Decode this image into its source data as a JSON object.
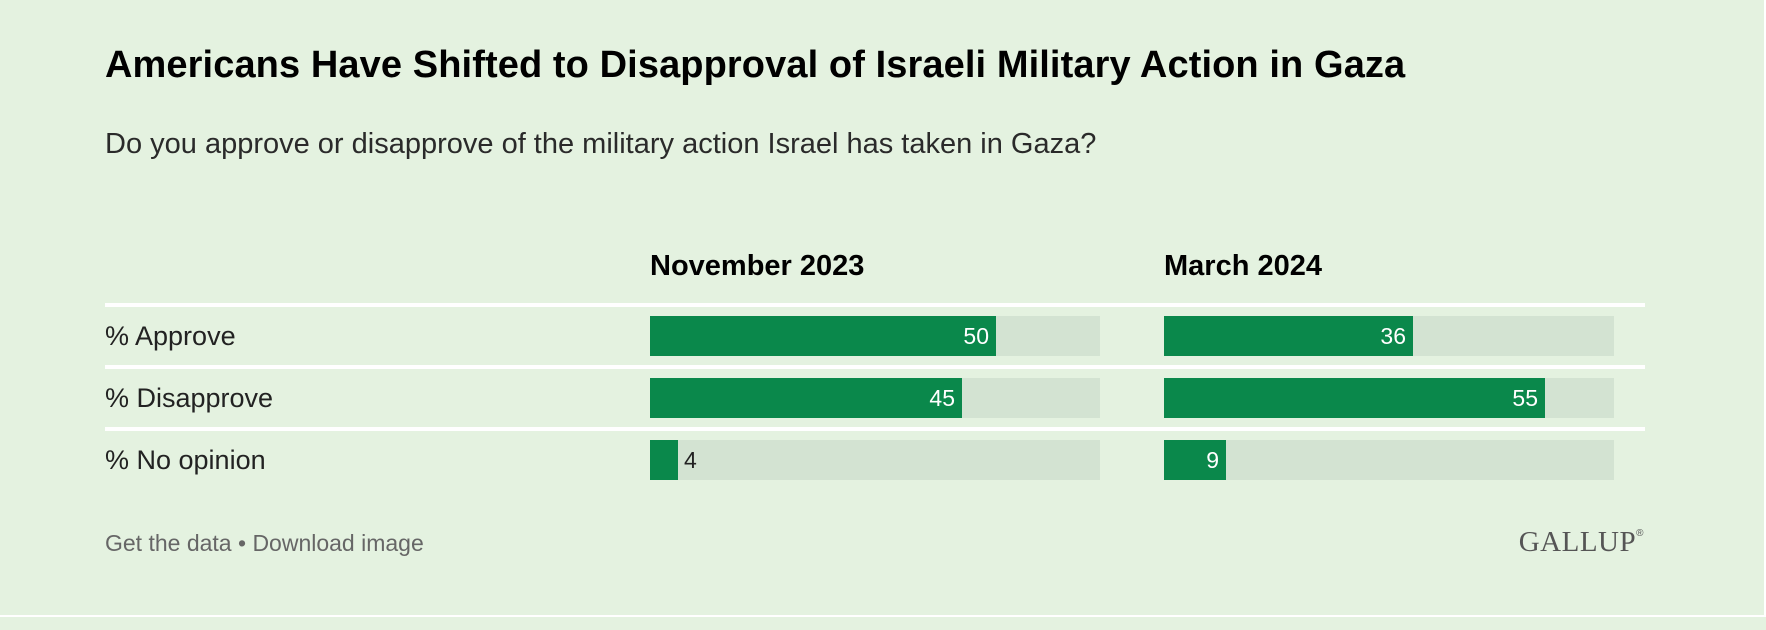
{
  "title": "Americans Have Shifted to Disapproval of Israeli Military Action in Gaza",
  "subtitle": "Do you approve or disapprove of the military action Israel has taken in Gaza?",
  "footer": {
    "get_data": "Get the data",
    "separator": "•",
    "download": "Download image"
  },
  "logo": {
    "text": "GALLUP",
    "mark": "®"
  },
  "colors": {
    "background": "#e4f2e0",
    "bar": "#0a884b",
    "track": "#d3e3d2"
  },
  "chart_data": {
    "type": "bar",
    "orientation": "horizontal",
    "categories": [
      "% Approve",
      "% Disapprove",
      "% No opinion"
    ],
    "series": [
      {
        "name": "November 2023",
        "values": [
          50,
          45,
          4
        ]
      },
      {
        "name": "March 2024",
        "values": [
          36,
          55,
          9
        ]
      }
    ],
    "xlim": [
      0,
      65
    ],
    "grid": false,
    "legend": "column headers"
  }
}
